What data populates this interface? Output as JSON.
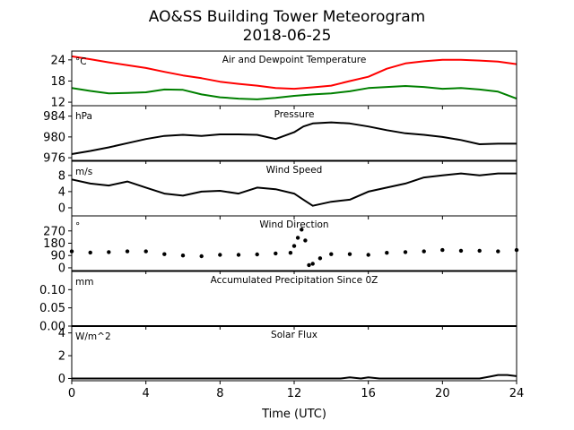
{
  "figure": {
    "title_line1": "AO&SS Building Tower Meteorogram",
    "title_line2": "2018-06-25",
    "xlabel": "Time (UTC)"
  },
  "chart_data": [
    {
      "type": "line",
      "title": "Air and Dewpoint Temperature",
      "unit": "°C",
      "ylim": [
        11,
        26.5
      ],
      "yticks": [
        12,
        18,
        24
      ],
      "xlim": [
        0,
        24
      ],
      "xticks": [
        0,
        4,
        8,
        12,
        16,
        20,
        24
      ],
      "series": [
        {
          "color": "#ff0000",
          "x": [
            0,
            1,
            2,
            3,
            4,
            5,
            6,
            7,
            8,
            9,
            10,
            11,
            12,
            13,
            14,
            15,
            16,
            17,
            18,
            19,
            20,
            21,
            22,
            23,
            24
          ],
          "y": [
            25,
            24.2,
            23.3,
            22.5,
            21.7,
            20.6,
            19.6,
            18.8,
            17.8,
            17.2,
            16.7,
            16,
            15.8,
            16.2,
            16.7,
            18,
            19.2,
            21.5,
            23,
            23.6,
            24,
            24,
            23.8,
            23.5,
            22.8
          ]
        },
        {
          "color": "#008000",
          "x": [
            0,
            1,
            2,
            3,
            4,
            5,
            6,
            7,
            8,
            9,
            10,
            11,
            12,
            13,
            14,
            15,
            16,
            17,
            18,
            19,
            20,
            21,
            22,
            23,
            24
          ],
          "y": [
            16,
            15.2,
            14.5,
            14.6,
            14.8,
            15.6,
            15.5,
            14.2,
            13.4,
            13,
            12.8,
            13.2,
            13.8,
            14.2,
            14.5,
            15.1,
            16,
            16.3,
            16.6,
            16.3,
            15.8,
            16,
            15.6,
            15,
            13
          ]
        }
      ]
    },
    {
      "type": "line",
      "title": "Pressure",
      "unit": "hPa",
      "ylim": [
        975.5,
        986
      ],
      "yticks": [
        976,
        980,
        984
      ],
      "xlim": [
        0,
        24
      ],
      "xticks": [
        0,
        4,
        8,
        12,
        16,
        20,
        24
      ],
      "series": [
        {
          "color": "#000000",
          "x": [
            0,
            1,
            2,
            3,
            4,
            5,
            6,
            7,
            8,
            9,
            10,
            11,
            12,
            12.5,
            13,
            14,
            15,
            16,
            17,
            18,
            19,
            20,
            21,
            22,
            23,
            24
          ],
          "y": [
            976.7,
            977.3,
            978,
            978.8,
            979.6,
            980.2,
            980.4,
            980.2,
            980.5,
            980.5,
            980.4,
            979.6,
            980.9,
            982,
            982.6,
            982.8,
            982.6,
            982,
            981.3,
            980.7,
            980.4,
            980,
            979.4,
            978.6,
            978.7,
            978.7
          ]
        }
      ]
    },
    {
      "type": "line",
      "title": "Wind Speed",
      "unit": "m/s",
      "ylim": [
        -2,
        11.5
      ],
      "yticks": [
        0,
        4,
        8
      ],
      "xlim": [
        0,
        24
      ],
      "xticks": [
        0,
        4,
        8,
        12,
        16,
        20,
        24
      ],
      "series": [
        {
          "color": "#000000",
          "x": [
            0,
            1,
            2,
            3,
            4,
            5,
            6,
            7,
            8,
            9,
            10,
            11,
            12,
            12.5,
            13,
            14,
            15,
            16,
            17,
            18,
            19,
            20,
            21,
            22,
            23,
            24
          ],
          "y": [
            7,
            6,
            5.5,
            6.5,
            5,
            3.5,
            3,
            4,
            4.2,
            3.5,
            5,
            4.6,
            3.5,
            2,
            0.5,
            1.5,
            2,
            4,
            5,
            6,
            7.5,
            8,
            8.5,
            8,
            8.5,
            8.5
          ]
        }
      ]
    },
    {
      "type": "scatter",
      "title": "Wind Direction",
      "unit": "°",
      "ylim": [
        -20,
        380
      ],
      "yticks": [
        0,
        90,
        180,
        270
      ],
      "xlim": [
        0,
        24
      ],
      "xticks": [
        0,
        4,
        8,
        12,
        16,
        20,
        24
      ],
      "series": [
        {
          "color": "#000000",
          "x": [
            0,
            1,
            2,
            3,
            4,
            5,
            6,
            7,
            8,
            9,
            10,
            11,
            11.8,
            12,
            12.2,
            12.4,
            12.6,
            12.8,
            13,
            13.4,
            14,
            15,
            16,
            17,
            18,
            19,
            20,
            21,
            22,
            23,
            24
          ],
          "y": [
            120,
            112,
            115,
            120,
            120,
            100,
            90,
            85,
            95,
            95,
            98,
            105,
            110,
            160,
            220,
            280,
            200,
            20,
            30,
            70,
            100,
            100,
            95,
            110,
            115,
            120,
            130,
            125,
            125,
            120,
            130
          ]
        }
      ]
    },
    {
      "type": "line",
      "title": "Accumulated Precipitation Since 0Z",
      "unit": "mm",
      "ylim": [
        0,
        0.15
      ],
      "yticks": [
        0.0,
        0.05,
        0.1
      ],
      "ytick_labels": [
        "0.00",
        "0.05",
        "0.10"
      ],
      "xlim": [
        0,
        24
      ],
      "xticks": [
        0,
        4,
        8,
        12,
        16,
        20,
        24
      ],
      "series": [
        {
          "color": "#000000",
          "x": [
            0,
            24
          ],
          "y": [
            0,
            0
          ]
        }
      ]
    },
    {
      "type": "line",
      "title": "Solar Flux",
      "unit": "W/m^2",
      "ylim": [
        -0.2,
        4.6
      ],
      "yticks": [
        0,
        2,
        4
      ],
      "xlim": [
        0,
        24
      ],
      "xticks": [
        0,
        4,
        8,
        12,
        16,
        20,
        24
      ],
      "xtick_labels": [
        "0",
        "4",
        "8",
        "12",
        "16",
        "20",
        "24"
      ],
      "series": [
        {
          "color": "#000000",
          "x": [
            0,
            14.5,
            15,
            15.6,
            16,
            16.6,
            17,
            22,
            22.5,
            23,
            23.5,
            24
          ],
          "y": [
            0,
            0,
            0.1,
            0,
            0.1,
            0,
            0,
            0,
            0.15,
            0.3,
            0.3,
            0.2
          ]
        }
      ]
    }
  ]
}
